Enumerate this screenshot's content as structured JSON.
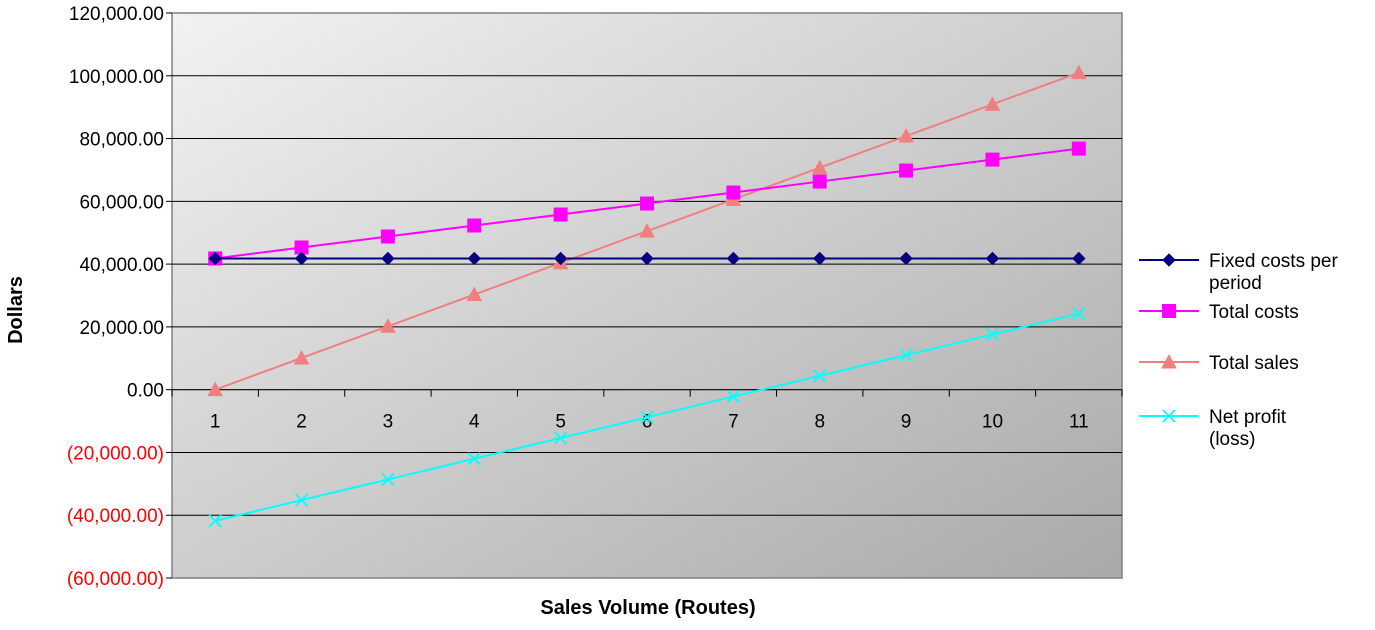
{
  "chart_data": {
    "type": "line",
    "title": "",
    "xlabel": "Sales Volume (Routes)",
    "ylabel": "Dollars",
    "categories": [
      "1",
      "2",
      "3",
      "4",
      "5",
      "6",
      "7",
      "8",
      "9",
      "10",
      "11"
    ],
    "ylim": [
      -60000,
      120000
    ],
    "ytick_values": [
      120000,
      100000,
      80000,
      60000,
      40000,
      20000,
      0,
      -20000,
      -40000,
      -60000
    ],
    "yticks": [
      "120,000.00",
      "100,000.00",
      "80,000.00",
      "60,000.00",
      "40,000.00",
      "20,000.00",
      "0.00",
      "(20,000.00)",
      "(40,000.00)",
      "(60,000.00)"
    ],
    "negative_tick_color": "#ff0000",
    "grid": true,
    "legend_position": "right",
    "series": [
      {
        "name": "Fixed costs per period",
        "color": "#000080",
        "marker": "diamond",
        "values": [
          41800,
          41800,
          41800,
          41800,
          41800,
          41800,
          41800,
          41800,
          41800,
          41800,
          41800
        ]
      },
      {
        "name": "Total costs",
        "color": "#ff00ff",
        "marker": "square",
        "values": [
          41800,
          45300,
          48800,
          52300,
          55800,
          59300,
          62800,
          66300,
          69800,
          73300,
          76800
        ]
      },
      {
        "name": "Total sales",
        "color": "#f08080",
        "marker": "triangle",
        "values": [
          0,
          10100,
          20200,
          30300,
          40400,
          50500,
          60600,
          70700,
          80800,
          90900,
          101000
        ]
      },
      {
        "name": "Net profit (loss)",
        "color": "#00ffff",
        "marker": "x",
        "values": [
          -41800,
          -35200,
          -28600,
          -22000,
          -15400,
          -8800,
          -2200,
          4400,
          11000,
          17600,
          24200
        ]
      }
    ]
  }
}
